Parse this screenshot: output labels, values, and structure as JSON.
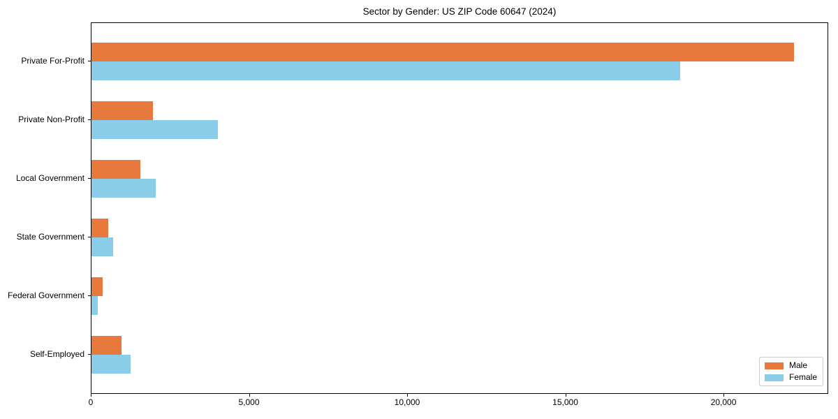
{
  "chart_data": {
    "type": "bar",
    "orientation": "horizontal",
    "title": "Sector by Gender: US ZIP Code 60647 (2024)",
    "categories": [
      "Private For-Profit",
      "Private Non-Profit",
      "Local Government",
      "State Government",
      "Federal Government",
      "Self-Employed"
    ],
    "series": [
      {
        "name": "Male",
        "color": "#E8793D",
        "values": [
          22200,
          1950,
          1550,
          530,
          350,
          950
        ]
      },
      {
        "name": "Female",
        "color": "#89CDE8",
        "values": [
          18600,
          4000,
          2030,
          680,
          200,
          1240
        ]
      }
    ],
    "xlabel": "",
    "ylabel": "",
    "xlim": [
      0,
      23310
    ],
    "xticks": {
      "values": [
        0,
        5000,
        10000,
        15000,
        20000
      ],
      "labels": [
        "0",
        "5,000",
        "10,000",
        "15,000",
        "20,000"
      ]
    },
    "grid": false,
    "legend_position": "lower right"
  },
  "colors": {
    "background": "#ffffff",
    "spine": "#000000",
    "legend_border": "#cccccc",
    "text": "#000000"
  }
}
